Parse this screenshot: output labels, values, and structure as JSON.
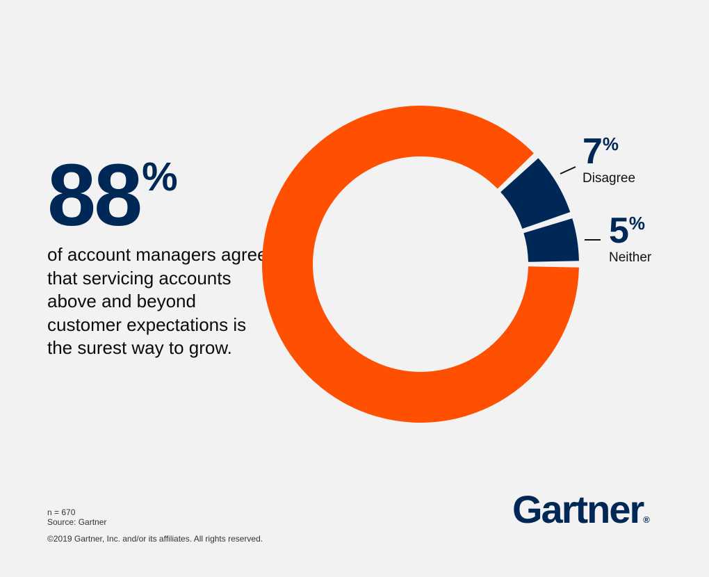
{
  "headline": {
    "value": "88",
    "unit": "%",
    "statement": "of account managers agree that servicing accounts above and beyond customer expectations is the surest way to grow."
  },
  "chart_data": {
    "type": "pie",
    "subtype": "donut",
    "unit": "%",
    "slices": [
      {
        "label": "Agree",
        "value": 88,
        "color": "#fe5000"
      },
      {
        "label": "Disagree",
        "value": 7,
        "color": "#002856"
      },
      {
        "label": "Neither",
        "value": 5,
        "color": "#002856"
      }
    ],
    "data_labels": [
      {
        "slice": "Disagree",
        "value": "7",
        "unit": "%",
        "label": "Disagree"
      },
      {
        "slice": "Neither",
        "value": "5",
        "unit": "%",
        "label": "Neither"
      }
    ],
    "legend": "none"
  },
  "footer": {
    "sample": "n = 670",
    "source": "Source: Gartner",
    "copyright": "©2019 Gartner, Inc. and/or its affiliates. All rights reserved."
  },
  "logo": {
    "text": "Gartner",
    "mark": "®"
  },
  "colors": {
    "background": "#f3f2f2",
    "navy": "#002856",
    "orange": "#fe5000"
  }
}
